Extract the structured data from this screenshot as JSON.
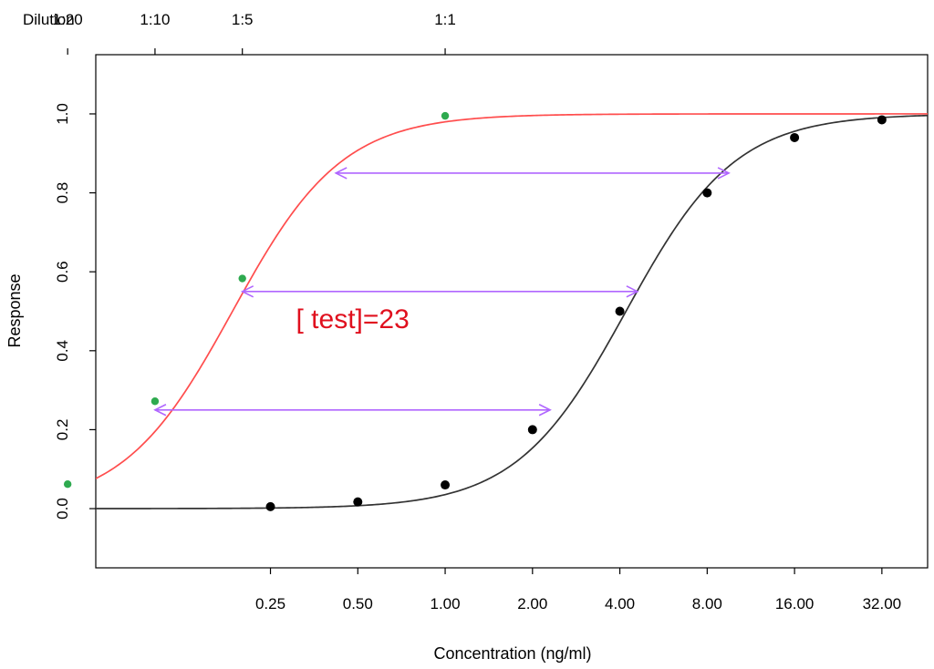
{
  "chart_data": {
    "type": "scatter",
    "title": "",
    "xlabel": "Concentration (ng/ml)",
    "ylabel": "Response",
    "x_scale": "log2",
    "xlim": [
      0.0625,
      46
    ],
    "ylim": [
      -0.15,
      1.15
    ],
    "x_ticks": [
      {
        "value": 0.25,
        "label": "0.25"
      },
      {
        "value": 0.5,
        "label": "0.50"
      },
      {
        "value": 1,
        "label": "1.00"
      },
      {
        "value": 2,
        "label": "2.00"
      },
      {
        "value": 4,
        "label": "4.00"
      },
      {
        "value": 8,
        "label": "8.00"
      },
      {
        "value": 16,
        "label": "16.00"
      },
      {
        "value": 32,
        "label": "32.00"
      }
    ],
    "y_ticks": [
      {
        "value": 0,
        "label": "0.0"
      },
      {
        "value": 0.2,
        "label": "0.2"
      },
      {
        "value": 0.4,
        "label": "0.4"
      },
      {
        "value": 0.6,
        "label": "0.6"
      },
      {
        "value": 0.8,
        "label": "0.8"
      },
      {
        "value": 1,
        "label": "1.0"
      }
    ],
    "top_axis": {
      "label": "Dilution",
      "ticks": [
        {
          "value": 0.05,
          "label": "1:20"
        },
        {
          "value": 0.1,
          "label": "1:10"
        },
        {
          "value": 0.2,
          "label": "1:5"
        },
        {
          "value": 1,
          "label": "1:1"
        }
      ]
    },
    "grid": false,
    "series": [
      {
        "color": "#000000",
        "curve": {
          "ec50": 4.2,
          "hill": 2.3,
          "color": "#333333"
        },
        "points": [
          {
            "x": 0.25,
            "y": 0.005
          },
          {
            "x": 0.5,
            "y": 0.017
          },
          {
            "x": 1,
            "y": 0.06
          },
          {
            "x": 2,
            "y": 0.2
          },
          {
            "x": 4,
            "y": 0.5
          },
          {
            "x": 8,
            "y": 0.8
          },
          {
            "x": 16,
            "y": 0.94
          },
          {
            "x": 32,
            "y": 0.985
          }
        ]
      },
      {
        "color": "#2eaa4f",
        "curve": {
          "ec50": 0.185,
          "hill": 2.3,
          "color": "#ff4d4d"
        },
        "points": [
          {
            "x": 0.05,
            "y": 0.062
          },
          {
            "x": 0.1,
            "y": 0.272
          },
          {
            "x": 0.2,
            "y": 0.583
          },
          {
            "x": 1,
            "y": 0.995
          }
        ]
      }
    ],
    "arrows": [
      {
        "y": 0.25,
        "x_from": 0.1,
        "x_to": 2.3
      },
      {
        "y": 0.55,
        "x_from": 0.2,
        "x_to": 4.6
      },
      {
        "y": 0.85,
        "x_from": 0.42,
        "x_to": 9.5
      }
    ],
    "annotation": {
      "text": "[ test]=23",
      "x": 0.48,
      "y": 0.48,
      "color": "#e0101e"
    }
  }
}
